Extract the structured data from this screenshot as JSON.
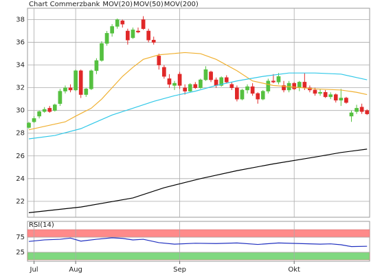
{
  "chart_data": [
    {
      "type": "candlestick",
      "title": "Chart Commerzbank",
      "title_color": "#d08020",
      "up_color": "#55c040",
      "down_color": "#e02828",
      "open": [
        28.5,
        29.0,
        29.5,
        29.9,
        30.2,
        30.0,
        30.6,
        31.7,
        32.0,
        31.8,
        33.5,
        31.4,
        31.9,
        33.5,
        34.4,
        35.9,
        36.8,
        37.4,
        37.9,
        37.0,
        36.4,
        37.0,
        38.0,
        37.0,
        36.2,
        34.8,
        33.8,
        32.8,
        32.2,
        33.2,
        32.0,
        31.7,
        32.3,
        32.0,
        32.7,
        33.4,
        32.7,
        32.2,
        32.9,
        32.3,
        32.0,
        31.0,
        31.8,
        32.1,
        31.5,
        31.0,
        31.7,
        32.6,
        32.5,
        32.2,
        31.8,
        32.4,
        32.0,
        32.5,
        32.0,
        31.8,
        31.5,
        31.6,
        31.2,
        31.4,
        30.9,
        31.1,
        29.5,
        29.9,
        30.3,
        30.0
      ],
      "high": [
        29.0,
        29.5,
        30.0,
        30.3,
        30.4,
        30.6,
        31.9,
        32.2,
        32.3,
        33.6,
        33.6,
        32.0,
        33.6,
        34.6,
        36.1,
        37.0,
        37.6,
        38.1,
        38.0,
        37.2,
        37.3,
        37.3,
        38.3,
        37.2,
        36.5,
        35.0,
        34.0,
        33.2,
        32.6,
        33.4,
        32.3,
        32.4,
        32.5,
        32.8,
        33.9,
        33.5,
        32.9,
        33.0,
        33.1,
        32.5,
        32.2,
        31.9,
        32.3,
        32.4,
        31.6,
        31.8,
        32.8,
        33.2,
        33.3,
        32.6,
        32.6,
        32.5,
        32.6,
        33.3,
        32.2,
        32.0,
        31.9,
        31.8,
        31.6,
        31.5,
        31.9,
        31.2,
        30.0,
        30.5,
        30.6,
        30.1
      ],
      "low": [
        28.4,
        28.9,
        29.3,
        29.8,
        29.8,
        29.9,
        30.4,
        31.5,
        31.6,
        31.7,
        31.1,
        31.2,
        31.8,
        33.2,
        34.3,
        35.7,
        36.5,
        37.2,
        37.3,
        35.8,
        36.3,
        36.8,
        37.1,
        36.0,
        35.8,
        33.6,
        32.8,
        32.0,
        31.8,
        31.9,
        31.4,
        31.6,
        31.9,
        31.9,
        32.6,
        32.5,
        32.0,
        32.1,
        32.4,
        31.8,
        30.8,
        30.9,
        31.5,
        31.3,
        30.6,
        30.9,
        31.5,
        32.4,
        32.3,
        31.6,
        31.6,
        31.8,
        31.7,
        31.8,
        31.6,
        31.3,
        31.3,
        31.1,
        31.0,
        30.7,
        30.4,
        30.6,
        29.0,
        29.7,
        29.7,
        29.6
      ],
      "close": [
        28.9,
        29.3,
        29.9,
        30.1,
        29.9,
        30.5,
        31.7,
        32.0,
        31.8,
        33.5,
        31.4,
        31.9,
        33.5,
        34.4,
        35.9,
        36.8,
        37.4,
        38.0,
        37.6,
        36.2,
        37.1,
        36.9,
        37.2,
        36.2,
        36.0,
        34.0,
        33.0,
        32.3,
        32.4,
        32.2,
        31.7,
        32.3,
        32.0,
        32.7,
        33.6,
        32.7,
        32.2,
        32.9,
        32.5,
        32.0,
        31.0,
        31.8,
        32.1,
        31.5,
        31.0,
        31.7,
        32.6,
        32.5,
        33.0,
        31.8,
        32.4,
        31.9,
        32.5,
        32.0,
        31.8,
        31.5,
        31.6,
        31.2,
        31.4,
        30.9,
        31.1,
        30.7,
        29.8,
        30.2,
        29.9,
        29.7
      ],
      "series": [
        {
          "name": "MOV(20)",
          "color": "#f0b030",
          "x": [
            0,
            3,
            7,
            9,
            12,
            14,
            16,
            18,
            20,
            22,
            25,
            30,
            33,
            36,
            40,
            43,
            47,
            50,
            55,
            60,
            63,
            65
          ],
          "values": [
            28.3,
            28.6,
            29.0,
            29.5,
            30.2,
            31.0,
            32.0,
            33.0,
            33.8,
            34.5,
            34.9,
            35.1,
            35.0,
            34.5,
            33.5,
            32.6,
            32.2,
            32.1,
            31.9,
            31.8,
            31.6,
            31.4
          ]
        },
        {
          "name": "MOV(50)",
          "color": "#30c8e8",
          "x": [
            0,
            5,
            10,
            13,
            16,
            20,
            24,
            28,
            32,
            36,
            40,
            45,
            50,
            55,
            60,
            63,
            65
          ],
          "values": [
            27.5,
            27.8,
            28.4,
            29.0,
            29.6,
            30.2,
            30.8,
            31.3,
            31.7,
            32.2,
            32.6,
            33.0,
            33.3,
            33.3,
            33.2,
            32.9,
            32.7
          ]
        },
        {
          "name": "MOV(200)",
          "color": "#000000",
          "x": [
            0,
            10,
            20,
            26,
            33,
            40,
            47,
            55,
            60,
            65
          ],
          "values": [
            21.0,
            21.5,
            22.3,
            23.2,
            24.0,
            24.7,
            25.3,
            25.9,
            26.3,
            26.6
          ]
        }
      ],
      "xlim": [
        -0.26,
        65.5
      ],
      "ylim": [
        20.6,
        39
      ],
      "yticks": [
        22,
        24,
        26,
        28,
        30,
        32,
        34,
        36,
        38
      ],
      "xticks": [
        {
          "value": 1,
          "label": "Jul"
        },
        {
          "value": 9,
          "label": "Aug"
        },
        {
          "value": 29,
          "label": "Sep"
        },
        {
          "value": 51,
          "label": "Okt"
        }
      ],
      "grid": true
    },
    {
      "type": "line",
      "title": "RSI(14)",
      "series": [
        {
          "color": "#2030c0",
          "x": [
            0,
            3,
            6,
            8,
            10,
            13,
            16,
            18,
            20,
            22,
            25,
            28,
            32,
            36,
            40,
            44,
            48,
            52,
            56,
            58,
            60,
            62,
            65
          ],
          "values": [
            61,
            66,
            68,
            72,
            62,
            68,
            73,
            71,
            66,
            68,
            57,
            52,
            55,
            54,
            56,
            51,
            56,
            54,
            52,
            53,
            50,
            44,
            45
          ]
        }
      ],
      "bands": [
        {
          "range": [
            75,
            100
          ],
          "color": "#ff8a8a"
        },
        {
          "range": [
            0,
            25
          ],
          "color": "#80d880"
        }
      ],
      "xlim": [
        -0.26,
        65.5
      ],
      "ylim": [
        0,
        100
      ],
      "yticks": [
        25,
        75
      ],
      "grid": true
    }
  ]
}
